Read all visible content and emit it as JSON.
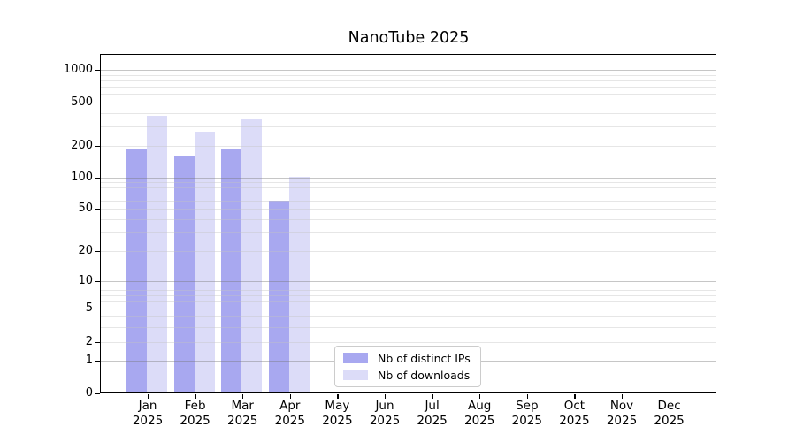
{
  "chart_data": {
    "type": "bar",
    "title": "NanoTube 2025",
    "xlabel": "",
    "ylabel": "",
    "scale": "log-like (0,1,2,5,10,20,50,100,200,500,1000)",
    "grid": true,
    "legend_position": "inside-bottom-center",
    "yticks": [
      0,
      1,
      2,
      5,
      10,
      20,
      50,
      100,
      200,
      500,
      1000
    ],
    "ylim": [
      0,
      1450
    ],
    "categories": [
      {
        "month": "Jan",
        "year": "2025"
      },
      {
        "month": "Feb",
        "year": "2025"
      },
      {
        "month": "Mar",
        "year": "2025"
      },
      {
        "month": "Apr",
        "year": "2025"
      },
      {
        "month": "May",
        "year": "2025"
      },
      {
        "month": "Jun",
        "year": "2025"
      },
      {
        "month": "Jul",
        "year": "2025"
      },
      {
        "month": "Aug",
        "year": "2025"
      },
      {
        "month": "Sep",
        "year": "2025"
      },
      {
        "month": "Oct",
        "year": "2025"
      },
      {
        "month": "Nov",
        "year": "2025"
      },
      {
        "month": "Dec",
        "year": "2025"
      }
    ],
    "series": [
      {
        "name": "Nb of distinct IPs",
        "color": "#a8a8f0",
        "values": [
          190,
          160,
          185,
          60,
          0,
          0,
          0,
          0,
          0,
          0,
          0,
          0
        ]
      },
      {
        "name": "Nb of downloads",
        "color": "#dcdcf8",
        "values": [
          380,
          270,
          350,
          102,
          0,
          0,
          0,
          0,
          0,
          0,
          0,
          0
        ]
      }
    ],
    "colors": {
      "grid_major": "#c9c9c9",
      "grid_minor": "#ececec",
      "spine": "#000000",
      "background": "#ffffff",
      "legend_border": "#cccccc"
    }
  }
}
